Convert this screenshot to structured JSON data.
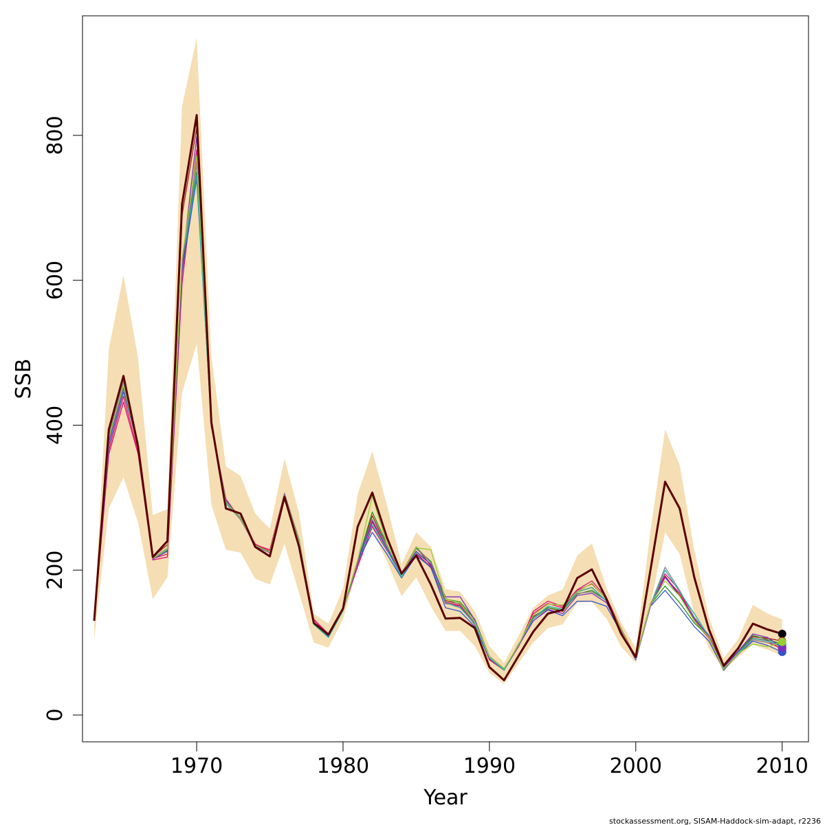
{
  "chart_data": {
    "type": "line",
    "xlabel": "Year",
    "ylabel": "SSB",
    "xlim": [
      1962.2,
      2011.8
    ],
    "ylim": [
      -37,
      965
    ],
    "x_ticks": [
      1970,
      1980,
      1990,
      2000,
      2010
    ],
    "y_ticks": [
      0,
      200,
      400,
      600,
      800
    ],
    "grid": false,
    "legend": "none",
    "credit": "stockassessment.org, SISAM-Haddock-sim-adapt, r2236",
    "x": [
      1963,
      1964,
      1965,
      1966,
      1967,
      1968,
      1969,
      1970,
      1971,
      1972,
      1973,
      1974,
      1975,
      1976,
      1977,
      1978,
      1979,
      1980,
      1981,
      1982,
      1983,
      1984,
      1985,
      1986,
      1987,
      1988,
      1989,
      1990,
      1991,
      1992,
      1993,
      1994,
      1995,
      1996,
      1997,
      1998,
      1999,
      2000,
      2001,
      2002,
      2003,
      2004,
      2005,
      2006,
      2007,
      2008,
      2009,
      2010
    ],
    "band": {
      "color": "#F5DEB3",
      "lower": [
        105,
        285,
        328,
        265,
        160,
        190,
        445,
        512,
        290,
        228,
        224,
        188,
        180,
        236,
        168,
        100,
        93,
        132,
        205,
        255,
        212,
        164,
        190,
        150,
        116,
        116,
        95,
        58,
        43,
        72,
        100,
        120,
        125,
        155,
        156,
        133,
        94,
        72,
        152,
        252,
        222,
        140,
        92,
        62,
        80,
        97,
        90,
        82
      ],
      "upper": [
        135,
        505,
        607,
        492,
        276,
        284,
        840,
        935,
        495,
        343,
        330,
        278,
        257,
        354,
        278,
        140,
        126,
        175,
        305,
        364,
        290,
        208,
        252,
        232,
        174,
        170,
        143,
        95,
        72,
        110,
        148,
        165,
        173,
        220,
        237,
        175,
        128,
        92,
        254,
        394,
        345,
        228,
        135,
        78,
        105,
        152,
        140,
        132
      ]
    },
    "series": [
      {
        "color": "#5B0000",
        "values": [
          130,
          394,
          468,
          370,
          218,
          240,
          705,
          828,
          404,
          285,
          278,
          232,
          219,
          301,
          232,
          127,
          111,
          147,
          260,
          307,
          245,
          195,
          220,
          180,
          133,
          134,
          120,
          66,
          48,
          82,
          115,
          140,
          145,
          189,
          201,
          160,
          112,
          80,
          200,
          322,
          285,
          190,
          118,
          68,
          92,
          126,
          118,
          112
        ]
      },
      {
        "color": "#A02020",
        "values": [
          130,
          380,
          455,
          368,
          218,
          235,
          690,
          810,
          402,
          295,
          272,
          236,
          224,
          303,
          240,
          126,
          110,
          146,
          214,
          275,
          233,
          195,
          232,
          206,
          158,
          153,
          127,
          80,
          64,
          95,
          136,
          148,
          143,
          170,
          176,
          157,
          118,
          78,
          150,
          192,
          165,
          134,
          110,
          67,
          88,
          108,
          106,
          102
        ]
      },
      {
        "color": "#E0107A",
        "values": [
          130,
          360,
          432,
          360,
          214,
          218,
          595,
          770,
          398,
          298,
          270,
          235,
          228,
          306,
          236,
          132,
          112,
          146,
          205,
          260,
          227,
          197,
          222,
          205,
          154,
          150,
          125,
          76,
          62,
          95,
          143,
          157,
          150,
          173,
          185,
          162,
          119,
          79,
          153,
          195,
          172,
          130,
          106,
          66,
          86,
          104,
          100,
          92
        ]
      },
      {
        "color": "#D81B60",
        "values": [
          130,
          366,
          440,
          363,
          216,
          222,
          608,
          780,
          399,
          297,
          271,
          236,
          226,
          305,
          238,
          131,
          111,
          147,
          208,
          266,
          230,
          196,
          224,
          203,
          156,
          151,
          126,
          77,
          63,
          96,
          140,
          154,
          148,
          172,
          181,
          160,
          118,
          79,
          151,
          190,
          168,
          132,
          107,
          67,
          87,
          106,
          103,
          90
        ]
      },
      {
        "color": "#3355CC",
        "values": [
          130,
          372,
          446,
          373,
          217,
          226,
          612,
          740,
          402,
          296,
          270,
          234,
          225,
          300,
          235,
          128,
          108,
          145,
          212,
          252,
          222,
          189,
          220,
          204,
          148,
          143,
          122,
          78,
          62,
          98,
          130,
          145,
          137,
          157,
          157,
          150,
          114,
          76,
          150,
          172,
          148,
          122,
          102,
          63,
          84,
          102,
          96,
          87
        ]
      },
      {
        "color": "#228B22",
        "values": [
          130,
          378,
          452,
          375,
          217,
          228,
          622,
          750,
          401,
          293,
          271,
          233,
          224,
          302,
          240,
          126,
          109,
          146,
          212,
          280,
          236,
          193,
          230,
          212,
          160,
          156,
          132,
          80,
          63,
          97,
          133,
          148,
          144,
          167,
          172,
          158,
          118,
          78,
          152,
          178,
          155,
          127,
          108,
          64,
          86,
          110,
          104,
          98
        ]
      },
      {
        "color": "#888888",
        "values": [
          130,
          386,
          460,
          376,
          217,
          230,
          630,
          760,
          403,
          292,
          273,
          233,
          224,
          306,
          242,
          128,
          110,
          147,
          213,
          270,
          233,
          193,
          232,
          210,
          161,
          152,
          128,
          81,
          64,
          96,
          134,
          150,
          146,
          168,
          170,
          158,
          118,
          77,
          152,
          204,
          172,
          135,
          110,
          61,
          85,
          104,
          100,
          95
        ]
      },
      {
        "color": "#20B2AA",
        "values": [
          130,
          380,
          450,
          372,
          216,
          227,
          625,
          745,
          400,
          292,
          270,
          234,
          224,
          298,
          236,
          125,
          107,
          144,
          211,
          262,
          228,
          190,
          224,
          208,
          155,
          148,
          126,
          79,
          62,
          96,
          133,
          150,
          146,
          170,
          176,
          157,
          118,
          77,
          150,
          200,
          170,
          140,
          108,
          65,
          86,
          106,
          102,
          96
        ]
      },
      {
        "color": "#7B2FBF",
        "values": [
          130,
          378,
          452,
          370,
          215,
          226,
          620,
          798,
          400,
          294,
          270,
          234,
          224,
          303,
          236,
          128,
          109,
          146,
          212,
          268,
          230,
          194,
          226,
          208,
          163,
          163,
          131,
          80,
          64,
          96,
          130,
          146,
          140,
          165,
          168,
          155,
          116,
          77,
          150,
          190,
          164,
          133,
          108,
          65,
          88,
          112,
          107,
          93
        ]
      },
      {
        "color": "#9ACD32",
        "values": [
          130,
          382,
          455,
          371,
          216,
          229,
          628,
          772,
          401,
          294,
          271,
          234,
          225,
          302,
          238,
          127,
          110,
          146,
          214,
          302,
          236,
          194,
          231,
          228,
          160,
          155,
          129,
          80,
          64,
          97,
          138,
          153,
          152,
          170,
          182,
          160,
          118,
          78,
          152,
          185,
          164,
          130,
          107,
          64,
          85,
          98,
          94,
          101
        ]
      }
    ]
  }
}
